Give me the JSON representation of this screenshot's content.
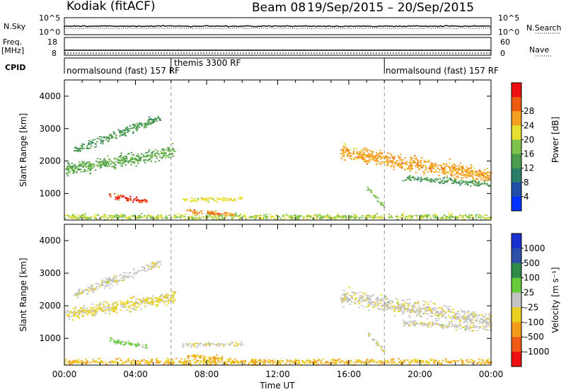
{
  "header": {
    "station": "Kodiak (fitACF)",
    "beam": "Beam 08",
    "date_range": "19/Sep/2015 – 20/Sep/2015"
  },
  "side_labels": {
    "nsky": "N.Sky",
    "nsearch": "N.Search",
    "freq": "Freq.",
    "freq_unit": "[MHz]",
    "nave": "Nave",
    "cpid": "CPID"
  },
  "top_panels": {
    "noise_left_ticks": [
      "10^5",
      "10^0"
    ],
    "noise_right_ticks": [
      "10^5",
      "10^0"
    ],
    "freq_left_ticks": [
      "18",
      "8"
    ],
    "nave_right_ticks": [
      "60",
      "0"
    ]
  },
  "cpid_segments": [
    {
      "label": "normalsound (fast) 157 RF",
      "start_hour": 0
    },
    {
      "label": "themis 3300 RF",
      "start_hour": 6
    },
    {
      "label": "normalsound (fast) 157 RF",
      "start_hour": 18
    }
  ],
  "colors": {
    "power": [
      "#0033ff",
      "#1f4fa8",
      "#2b7f68",
      "#4d9c4d",
      "#7ec24a",
      "#e8e030",
      "#f5a020",
      "#ee5a10",
      "#ee1010"
    ],
    "velocity": [
      "#ee1111",
      "#f05a15",
      "#f49a1a",
      "#ead020",
      "#c3c3c3",
      "#66cc3a",
      "#2e8b4a",
      "#2e4fa8",
      "#1a2fd0"
    ]
  },
  "chart_data": [
    {
      "type": "heatmap",
      "name": "power",
      "xlabel": "",
      "ylabel": "Slant Range [km]",
      "xlim": [
        0,
        24
      ],
      "ylim": [
        180,
        4500
      ],
      "yticks": [
        1000,
        2000,
        3000,
        4000
      ],
      "colorbar": {
        "label": "Power [dB]",
        "ticks": [
          "4",
          "8",
          "12",
          "16",
          "20",
          "24",
          "28"
        ],
        "range": [
          0,
          30
        ]
      },
      "features": [
        {
          "start_hour": 0.0,
          "end_hour": 6.2,
          "range_start_km": 1750,
          "range_end_km": 2300,
          "width_km": 320,
          "level": 0.42
        },
        {
          "start_hour": 0.5,
          "end_hour": 5.4,
          "range_start_km": 2350,
          "range_end_km": 3350,
          "width_km": 220,
          "level": 0.35
        },
        {
          "start_hour": 2.5,
          "end_hour": 4.6,
          "range_start_km": 950,
          "range_end_km": 780,
          "width_km": 150,
          "level": 0.95
        },
        {
          "start_hour": 6.6,
          "end_hour": 10.0,
          "range_start_km": 820,
          "range_end_km": 840,
          "width_km": 120,
          "level": 0.62
        },
        {
          "start_hour": 6.8,
          "end_hour": 9.5,
          "range_start_km": 480,
          "range_end_km": 360,
          "width_km": 130,
          "level": 0.82
        },
        {
          "start_hour": 0.0,
          "end_hour": 24.0,
          "range_start_km": 300,
          "range_end_km": 300,
          "width_km": 150,
          "level": 0.55
        },
        {
          "start_hour": 15.5,
          "end_hour": 24.0,
          "range_start_km": 2300,
          "range_end_km": 1550,
          "width_km": 380,
          "level": 0.75
        },
        {
          "start_hour": 19.0,
          "end_hour": 24.0,
          "range_start_km": 1500,
          "range_end_km": 1300,
          "width_km": 150,
          "level": 0.35
        },
        {
          "start_hour": 17.0,
          "end_hour": 18.0,
          "range_start_km": 1200,
          "range_end_km": 600,
          "width_km": 120,
          "level": 0.45
        }
      ]
    },
    {
      "type": "heatmap",
      "name": "velocity",
      "xlabel": "Time UT",
      "ylabel": "Slant Range [km]",
      "xlim": [
        0,
        24
      ],
      "ylim": [
        180,
        4500
      ],
      "yticks": [
        1000,
        2000,
        3000,
        4000
      ],
      "xticks": [
        "00:00",
        "04:00",
        "08:00",
        "12:00",
        "16:00",
        "20:00",
        "00:00"
      ],
      "colorbar": {
        "label": "Velocity [m s⁻¹]",
        "ticks": [
          "1000",
          "500",
          "100",
          "25",
          "–25",
          "–100",
          "–500",
          "–1000"
        ]
      },
      "features": [
        {
          "start_hour": 0.0,
          "end_hour": 6.2,
          "range_start_km": 1750,
          "range_end_km": 2300,
          "width_km": 320,
          "level": 0.42
        },
        {
          "start_hour": 0.5,
          "end_hour": 5.4,
          "range_start_km": 2350,
          "range_end_km": 3350,
          "width_km": 220,
          "level": 0.47
        },
        {
          "start_hour": 2.5,
          "end_hour": 4.6,
          "range_start_km": 950,
          "range_end_km": 780,
          "width_km": 150,
          "level": 0.6
        },
        {
          "start_hour": 6.6,
          "end_hour": 10.0,
          "range_start_km": 820,
          "range_end_km": 840,
          "width_km": 120,
          "level": 0.45
        },
        {
          "start_hour": 6.8,
          "end_hour": 9.5,
          "range_start_km": 480,
          "range_end_km": 360,
          "width_km": 130,
          "level": 0.3
        },
        {
          "start_hour": 0.0,
          "end_hour": 24.0,
          "range_start_km": 300,
          "range_end_km": 300,
          "width_km": 150,
          "level": 0.32
        },
        {
          "start_hour": 15.5,
          "end_hour": 24.0,
          "range_start_km": 2300,
          "range_end_km": 1550,
          "width_km": 380,
          "level": 0.47
        },
        {
          "start_hour": 19.0,
          "end_hour": 24.0,
          "range_start_km": 1500,
          "range_end_km": 1300,
          "width_km": 150,
          "level": 0.47
        },
        {
          "start_hour": 17.0,
          "end_hour": 18.0,
          "range_start_km": 1200,
          "range_end_km": 600,
          "width_km": 120,
          "level": 0.47
        }
      ]
    }
  ]
}
